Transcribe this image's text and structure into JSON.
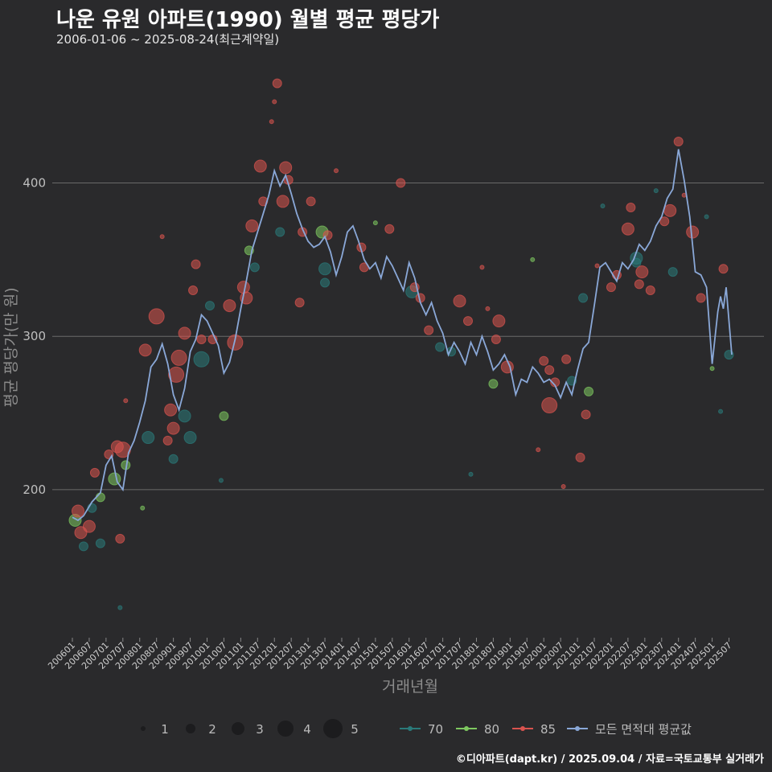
{
  "title": "나운 유원 아파트(1990) 월별 평균 평당가",
  "subtitle": "2006-01-06 ~ 2025-08-24(최근계약일)",
  "credit": "©디아파트(dapt.kr) / 2025.09.04 / 자료=국토교통부 실거래가",
  "chart_data": {
    "type": "scatter",
    "xlabel": "거래년월",
    "ylabel": "평균 평당가(만 원)",
    "x_range": [
      "2006-01",
      "2025-08"
    ],
    "ylim": [
      105,
      480
    ],
    "y_ticks": [
      200,
      300,
      400
    ],
    "x_ticks": [
      "200601",
      "200607",
      "200701",
      "200707",
      "200801",
      "200807",
      "200901",
      "200907",
      "201001",
      "201007",
      "201101",
      "201107",
      "201201",
      "201207",
      "201301",
      "201307",
      "201401",
      "201407",
      "201501",
      "201507",
      "201601",
      "201607",
      "201701",
      "201707",
      "201801",
      "201807",
      "201901",
      "201907",
      "202001",
      "202007",
      "202101",
      "202107",
      "202201",
      "202207",
      "202301",
      "202307",
      "202401",
      "202407",
      "202501",
      "202507"
    ],
    "grid": "horizontal",
    "size_legend": [
      1,
      2,
      3,
      4,
      5
    ],
    "colors": {
      "70": "#2a7a7a",
      "80": "#7ec860",
      "85": "#d9534f",
      "avg": "#8aa8d8"
    },
    "series_legend": [
      {
        "key": "70",
        "label": "70"
      },
      {
        "key": "80",
        "label": "80"
      },
      {
        "key": "85",
        "label": "85"
      },
      {
        "key": "avg",
        "label": "모든 면적대 평균값"
      }
    ],
    "avg_line": [
      [
        "2006-01",
        182
      ],
      [
        "2006-03",
        180
      ],
      [
        "2006-05",
        183
      ],
      [
        "2006-08",
        192
      ],
      [
        "2006-11",
        198
      ],
      [
        "2007-01",
        216
      ],
      [
        "2007-03",
        222
      ],
      [
        "2007-05",
        205
      ],
      [
        "2007-07",
        200
      ],
      [
        "2007-09",
        224
      ],
      [
        "2007-11",
        232
      ],
      [
        "2008-01",
        244
      ],
      [
        "2008-03",
        258
      ],
      [
        "2008-05",
        280
      ],
      [
        "2008-07",
        285
      ],
      [
        "2008-09",
        295
      ],
      [
        "2008-11",
        282
      ],
      [
        "2009-01",
        262
      ],
      [
        "2009-03",
        252
      ],
      [
        "2009-05",
        266
      ],
      [
        "2009-07",
        290
      ],
      [
        "2009-09",
        298
      ],
      [
        "2009-11",
        314
      ],
      [
        "2010-01",
        310
      ],
      [
        "2010-03",
        302
      ],
      [
        "2010-05",
        294
      ],
      [
        "2010-07",
        276
      ],
      [
        "2010-09",
        283
      ],
      [
        "2010-11",
        298
      ],
      [
        "2011-01",
        318
      ],
      [
        "2011-03",
        336
      ],
      [
        "2011-05",
        356
      ],
      [
        "2011-07",
        368
      ],
      [
        "2011-09",
        380
      ],
      [
        "2011-11",
        392
      ],
      [
        "2012-01",
        408
      ],
      [
        "2012-03",
        398
      ],
      [
        "2012-05",
        405
      ],
      [
        "2012-07",
        393
      ],
      [
        "2012-09",
        380
      ],
      [
        "2012-11",
        370
      ],
      [
        "2013-01",
        362
      ],
      [
        "2013-03",
        358
      ],
      [
        "2013-05",
        360
      ],
      [
        "2013-07",
        365
      ],
      [
        "2013-09",
        355
      ],
      [
        "2013-11",
        340
      ],
      [
        "2014-01",
        352
      ],
      [
        "2014-03",
        368
      ],
      [
        "2014-05",
        372
      ],
      [
        "2014-07",
        362
      ],
      [
        "2014-09",
        350
      ],
      [
        "2014-11",
        344
      ],
      [
        "2015-01",
        348
      ],
      [
        "2015-03",
        338
      ],
      [
        "2015-05",
        352
      ],
      [
        "2015-07",
        346
      ],
      [
        "2015-09",
        338
      ],
      [
        "2015-11",
        330
      ],
      [
        "2016-01",
        348
      ],
      [
        "2016-03",
        338
      ],
      [
        "2016-05",
        322
      ],
      [
        "2016-07",
        314
      ],
      [
        "2016-09",
        322
      ],
      [
        "2016-11",
        310
      ],
      [
        "2017-01",
        302
      ],
      [
        "2017-03",
        288
      ],
      [
        "2017-05",
        296
      ],
      [
        "2017-07",
        290
      ],
      [
        "2017-09",
        282
      ],
      [
        "2017-11",
        296
      ],
      [
        "2018-01",
        288
      ],
      [
        "2018-03",
        300
      ],
      [
        "2018-05",
        290
      ],
      [
        "2018-07",
        278
      ],
      [
        "2018-09",
        282
      ],
      [
        "2018-11",
        288
      ],
      [
        "2019-01",
        280
      ],
      [
        "2019-03",
        262
      ],
      [
        "2019-05",
        272
      ],
      [
        "2019-07",
        270
      ],
      [
        "2019-09",
        280
      ],
      [
        "2019-11",
        276
      ],
      [
        "2020-01",
        270
      ],
      [
        "2020-03",
        272
      ],
      [
        "2020-05",
        268
      ],
      [
        "2020-07",
        260
      ],
      [
        "2020-09",
        270
      ],
      [
        "2020-11",
        262
      ],
      [
        "2021-01",
        278
      ],
      [
        "2021-03",
        292
      ],
      [
        "2021-05",
        296
      ],
      [
        "2021-07",
        320
      ],
      [
        "2021-09",
        345
      ],
      [
        "2021-11",
        348
      ],
      [
        "2022-01",
        342
      ],
      [
        "2022-03",
        336
      ],
      [
        "2022-05",
        348
      ],
      [
        "2022-07",
        344
      ],
      [
        "2022-09",
        350
      ],
      [
        "2022-11",
        360
      ],
      [
        "2023-01",
        356
      ],
      [
        "2023-03",
        362
      ],
      [
        "2023-05",
        372
      ],
      [
        "2023-07",
        378
      ],
      [
        "2023-09",
        390
      ],
      [
        "2023-11",
        396
      ],
      [
        "2024-01",
        422
      ],
      [
        "2024-03",
        402
      ],
      [
        "2024-05",
        378
      ],
      [
        "2024-07",
        342
      ],
      [
        "2024-09",
        340
      ],
      [
        "2024-11",
        332
      ],
      [
        "2025-01",
        282
      ],
      [
        "2025-03",
        316
      ],
      [
        "2025-04",
        326
      ],
      [
        "2025-05",
        318
      ],
      [
        "2025-06",
        332
      ],
      [
        "2025-08",
        288
      ]
    ],
    "points": [
      [
        "2006-02",
        180,
        3,
        "80"
      ],
      [
        "2006-03",
        186,
        3,
        "85"
      ],
      [
        "2006-04",
        172,
        3,
        "85"
      ],
      [
        "2006-05",
        163,
        2,
        "70"
      ],
      [
        "2006-07",
        176,
        3,
        "85"
      ],
      [
        "2006-08",
        188,
        2,
        "70"
      ],
      [
        "2006-09",
        211,
        2,
        "85"
      ],
      [
        "2006-11",
        195,
        2,
        "80"
      ],
      [
        "2006-11",
        165,
        2,
        "70"
      ],
      [
        "2007-02",
        223,
        2,
        "85"
      ],
      [
        "2007-04",
        207,
        3,
        "80"
      ],
      [
        "2007-05",
        228,
        3,
        "85"
      ],
      [
        "2007-06",
        168,
        2,
        "85"
      ],
      [
        "2007-07",
        226,
        4,
        "85"
      ],
      [
        "2007-08",
        216,
        2,
        "80"
      ],
      [
        "2007-06",
        123,
        1,
        "70"
      ],
      [
        "2007-08",
        258,
        1,
        "85"
      ],
      [
        "2008-03",
        291,
        3,
        "85"
      ],
      [
        "2008-04",
        234,
        3,
        "70"
      ],
      [
        "2008-07",
        313,
        4,
        "85"
      ],
      [
        "2008-09",
        365,
        1,
        "85"
      ],
      [
        "2008-11",
        232,
        2,
        "85"
      ],
      [
        "2008-12",
        252,
        3,
        "85"
      ],
      [
        "2009-01",
        240,
        3,
        "85"
      ],
      [
        "2009-01",
        220,
        2,
        "70"
      ],
      [
        "2009-02",
        275,
        4,
        "85"
      ],
      [
        "2009-03",
        286,
        4,
        "85"
      ],
      [
        "2009-05",
        302,
        3,
        "85"
      ],
      [
        "2009-05",
        248,
        3,
        "70"
      ],
      [
        "2009-07",
        234,
        3,
        "70"
      ],
      [
        "2009-08",
        330,
        2,
        "85"
      ],
      [
        "2009-09",
        347,
        2,
        "85"
      ],
      [
        "2009-11",
        285,
        4,
        "70"
      ],
      [
        "2009-11",
        298,
        2,
        "85"
      ],
      [
        "2010-02",
        320,
        2,
        "70"
      ],
      [
        "2010-03",
        298,
        2,
        "85"
      ],
      [
        "2010-07",
        248,
        2,
        "80"
      ],
      [
        "2010-09",
        320,
        3,
        "85"
      ],
      [
        "2010-11",
        296,
        4,
        "85"
      ],
      [
        "2011-02",
        332,
        3,
        "85"
      ],
      [
        "2011-03",
        325,
        3,
        "85"
      ],
      [
        "2011-04",
        356,
        2,
        "80"
      ],
      [
        "2011-05",
        372,
        3,
        "85"
      ],
      [
        "2011-06",
        345,
        2,
        "70"
      ],
      [
        "2011-08",
        411,
        3,
        "85"
      ],
      [
        "2011-09",
        388,
        2,
        "85"
      ],
      [
        "2011-12",
        440,
        1,
        "85"
      ],
      [
        "2012-01",
        453,
        1,
        "85"
      ],
      [
        "2012-02",
        465,
        2,
        "85"
      ],
      [
        "2012-03",
        368,
        2,
        "70"
      ],
      [
        "2012-04",
        388,
        3,
        "85"
      ],
      [
        "2012-05",
        410,
        3,
        "85"
      ],
      [
        "2012-06",
        402,
        2,
        "85"
      ],
      [
        "2012-10",
        322,
        2,
        "85"
      ],
      [
        "2012-11",
        368,
        2,
        "85"
      ],
      [
        "2013-02",
        388,
        2,
        "85"
      ],
      [
        "2013-06",
        368,
        3,
        "80"
      ],
      [
        "2013-07",
        344,
        3,
        "70"
      ],
      [
        "2013-07",
        335,
        2,
        "70"
      ],
      [
        "2013-08",
        366,
        2,
        "85"
      ],
      [
        "2013-11",
        408,
        1,
        "85"
      ],
      [
        "2014-08",
        358,
        2,
        "85"
      ],
      [
        "2014-09",
        345,
        2,
        "85"
      ],
      [
        "2015-01",
        374,
        1,
        "80"
      ],
      [
        "2015-06",
        370,
        2,
        "85"
      ],
      [
        "2015-10",
        400,
        2,
        "85"
      ],
      [
        "2016-02",
        329,
        3,
        "70"
      ],
      [
        "2016-03",
        332,
        2,
        "85"
      ],
      [
        "2016-05",
        325,
        2,
        "85"
      ],
      [
        "2016-08",
        304,
        2,
        "85"
      ],
      [
        "2016-12",
        293,
        2,
        "70"
      ],
      [
        "2017-04",
        290,
        2,
        "70"
      ],
      [
        "2017-07",
        323,
        3,
        "85"
      ],
      [
        "2017-10",
        310,
        2,
        "85"
      ],
      [
        "2018-03",
        345,
        1,
        "85"
      ],
      [
        "2018-05",
        318,
        1,
        "85"
      ],
      [
        "2018-07",
        269,
        2,
        "80"
      ],
      [
        "2018-08",
        298,
        2,
        "85"
      ],
      [
        "2018-09",
        310,
        3,
        "85"
      ],
      [
        "2018-12",
        280,
        3,
        "85"
      ],
      [
        "2019-09",
        350,
        1,
        "80"
      ],
      [
        "2020-01",
        284,
        2,
        "85"
      ],
      [
        "2020-03",
        278,
        2,
        "85"
      ],
      [
        "2020-03",
        255,
        4,
        "85"
      ],
      [
        "2020-05",
        270,
        2,
        "85"
      ],
      [
        "2020-09",
        285,
        2,
        "85"
      ],
      [
        "2020-11",
        271,
        2,
        "70"
      ],
      [
        "2021-02",
        221,
        2,
        "85"
      ],
      [
        "2021-04",
        249,
        2,
        "85"
      ],
      [
        "2021-05",
        264,
        2,
        "80"
      ],
      [
        "2021-03",
        325,
        2,
        "70"
      ],
      [
        "2021-08",
        346,
        1,
        "85"
      ],
      [
        "2022-01",
        332,
        2,
        "85"
      ],
      [
        "2022-03",
        340,
        2,
        "85"
      ],
      [
        "2022-07",
        370,
        3,
        "85"
      ],
      [
        "2022-08",
        384,
        2,
        "85"
      ],
      [
        "2022-10",
        351,
        3,
        "70"
      ],
      [
        "2022-10",
        348,
        2,
        "70"
      ],
      [
        "2022-11",
        334,
        2,
        "85"
      ],
      [
        "2022-12",
        342,
        3,
        "85"
      ],
      [
        "2023-03",
        330,
        2,
        "85"
      ],
      [
        "2023-08",
        375,
        2,
        "85"
      ],
      [
        "2023-10",
        382,
        3,
        "85"
      ],
      [
        "2023-11",
        342,
        2,
        "70"
      ],
      [
        "2024-01",
        427,
        2,
        "85"
      ],
      [
        "2024-06",
        368,
        3,
        "85"
      ],
      [
        "2024-09",
        325,
        2,
        "85"
      ],
      [
        "2025-05",
        344,
        2,
        "85"
      ],
      [
        "2025-07",
        288,
        2,
        "70"
      ],
      [
        "2024-03",
        392,
        1,
        "85"
      ],
      [
        "2023-05",
        395,
        1,
        "70"
      ],
      [
        "2021-10",
        385,
        1,
        "70"
      ],
      [
        "2024-11",
        378,
        1,
        "70"
      ],
      [
        "2025-01",
        279,
        1,
        "80"
      ],
      [
        "2025-04",
        251,
        1,
        "70"
      ],
      [
        "2019-11",
        226,
        1,
        "85"
      ],
      [
        "2020-08",
        202,
        1,
        "85"
      ],
      [
        "2017-11",
        210,
        1,
        "70"
      ],
      [
        "2008-02",
        188,
        1,
        "80"
      ],
      [
        "2010-06",
        206,
        1,
        "70"
      ]
    ]
  }
}
